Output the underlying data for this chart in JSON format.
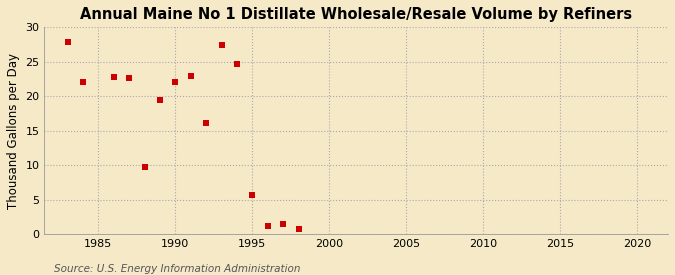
{
  "title": "Annual Maine No 1 Distillate Wholesale/Resale Volume by Refiners",
  "ylabel": "Thousand Gallons per Day",
  "source": "Source: U.S. Energy Information Administration",
  "background_color": "#f5e9c8",
  "plot_background_color": "#f5e9c8",
  "marker_color": "#cc0000",
  "marker": "s",
  "marker_size": 4,
  "xlim": [
    1981.5,
    2022
  ],
  "ylim": [
    0,
    30
  ],
  "yticks": [
    0,
    5,
    10,
    15,
    20,
    25,
    30
  ],
  "xticks": [
    1985,
    1990,
    1995,
    2000,
    2005,
    2010,
    2015,
    2020
  ],
  "x": [
    1983,
    1984,
    1986,
    1987,
    1988,
    1989,
    1990,
    1991,
    1992,
    1993,
    1994,
    1995,
    1996,
    1997,
    1998
  ],
  "y": [
    27.8,
    22.1,
    22.8,
    22.7,
    9.7,
    19.4,
    22.1,
    22.9,
    16.1,
    27.4,
    24.6,
    5.7,
    1.2,
    1.4,
    0.7
  ],
  "grid_color": "#aaaaaa",
  "title_fontsize": 10.5,
  "label_fontsize": 8.5,
  "tick_fontsize": 8,
  "source_fontsize": 7.5
}
